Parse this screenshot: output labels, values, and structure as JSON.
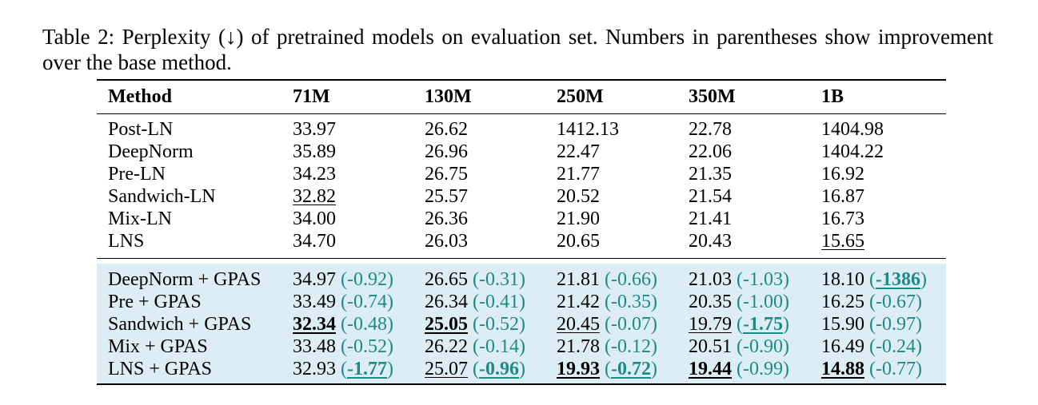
{
  "caption": "Table 2: Perplexity (↓) of pretrained models on evaluation set. Numbers in parentheses show improvement over the base method.",
  "columns": [
    "Method",
    "71M",
    "130M",
    "250M",
    "350M",
    "1B"
  ],
  "base_rows": [
    {
      "method": "Post-LN",
      "cells": [
        {
          "v": "33.97"
        },
        {
          "v": "26.62"
        },
        {
          "v": "1412.13"
        },
        {
          "v": "22.78"
        },
        {
          "v": "1404.98"
        }
      ]
    },
    {
      "method": "DeepNorm",
      "cells": [
        {
          "v": "35.89"
        },
        {
          "v": "26.96"
        },
        {
          "v": "22.47"
        },
        {
          "v": "22.06"
        },
        {
          "v": "1404.22"
        }
      ]
    },
    {
      "method": "Pre-LN",
      "cells": [
        {
          "v": "34.23"
        },
        {
          "v": "26.75"
        },
        {
          "v": "21.77"
        },
        {
          "v": "21.35"
        },
        {
          "v": "16.92"
        }
      ]
    },
    {
      "method": "Sandwich-LN",
      "cells": [
        {
          "v": "32.82",
          "u": true
        },
        {
          "v": "25.57"
        },
        {
          "v": "20.52"
        },
        {
          "v": "21.54"
        },
        {
          "v": "16.87"
        }
      ]
    },
    {
      "method": "Mix-LN",
      "cells": [
        {
          "v": "34.00"
        },
        {
          "v": "26.36"
        },
        {
          "v": "21.90"
        },
        {
          "v": "21.41"
        },
        {
          "v": "16.73"
        }
      ]
    },
    {
      "method": "LNS",
      "cells": [
        {
          "v": "34.70"
        },
        {
          "v": "26.03"
        },
        {
          "v": "20.65"
        },
        {
          "v": "20.43"
        },
        {
          "v": "15.65",
          "u": true
        }
      ]
    }
  ],
  "gpas_rows": [
    {
      "method": "DeepNorm + GPAS",
      "cells": [
        {
          "v": "34.97",
          "d": "-0.92"
        },
        {
          "v": "26.65",
          "d": "-0.31"
        },
        {
          "v": "21.81",
          "d": "-0.66"
        },
        {
          "v": "21.03",
          "d": "-1.03"
        },
        {
          "v": "18.10",
          "d": "-1386",
          "db": true,
          "du": true
        }
      ]
    },
    {
      "method": "Pre + GPAS",
      "cells": [
        {
          "v": "33.49",
          "d": "-0.74"
        },
        {
          "v": "26.34",
          "d": "-0.41"
        },
        {
          "v": "21.42",
          "d": "-0.35"
        },
        {
          "v": "20.35",
          "d": "-1.00"
        },
        {
          "v": "16.25",
          "d": "-0.67"
        }
      ]
    },
    {
      "method": "Sandwich + GPAS",
      "cells": [
        {
          "v": "32.34",
          "vb": true,
          "vu": true,
          "d": "-0.48"
        },
        {
          "v": "25.05",
          "vb": true,
          "vu": true,
          "d": "-0.52"
        },
        {
          "v": "20.45",
          "vu": true,
          "d": "-0.07"
        },
        {
          "v": "19.79",
          "vu": true,
          "d": "-1.75",
          "db": true,
          "du": true
        },
        {
          "v": "15.90",
          "d": "-0.97"
        }
      ]
    },
    {
      "method": "Mix + GPAS",
      "cells": [
        {
          "v": "33.48",
          "d": "-0.52"
        },
        {
          "v": "26.22",
          "d": "-0.14"
        },
        {
          "v": "21.78",
          "d": "-0.12"
        },
        {
          "v": "20.51",
          "d": "-0.90"
        },
        {
          "v": "16.49",
          "d": "-0.24"
        }
      ]
    },
    {
      "method": "LNS + GPAS",
      "cells": [
        {
          "v": "32.93",
          "d": "-1.77",
          "db": true,
          "du": true
        },
        {
          "v": "25.07",
          "vu": true,
          "d": "-0.96",
          "db": true,
          "du": true
        },
        {
          "v": "19.93",
          "vb": true,
          "vu": true,
          "d": "-0.72",
          "db": true,
          "du": true
        },
        {
          "v": "19.44",
          "vb": true,
          "vu": true,
          "d": "-0.99"
        },
        {
          "v": "14.88",
          "vb": true,
          "vu": true,
          "d": "-0.77"
        }
      ]
    }
  ]
}
